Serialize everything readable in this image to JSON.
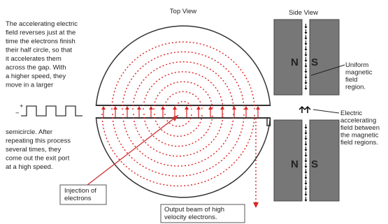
{
  "top_view": "Top View",
  "side_view": "Side View",
  "left_text": {
    "lines": [
      "The accelerating electric",
      "field reverses just at the",
      "time the electrons finish",
      "their half circle, so that",
      "it accelerates them",
      "across the gap. With",
      "a higher speed, they",
      "move in a larger"
    ]
  },
  "wave": {
    "plus": "+",
    "minus": "−"
  },
  "left_text2": {
    "lines": [
      "semicircle. After",
      "repeating this process",
      "several times, they",
      "come out the exit port",
      "at a high speed."
    ]
  },
  "injection": {
    "lines": [
      "Injection of",
      "electrons"
    ]
  },
  "output": {
    "lines": [
      "Output beam of high",
      "velocity electrons."
    ]
  },
  "magnet_top": {
    "n": "N",
    "s": "S"
  },
  "magnet_bottom": {
    "n": "N",
    "s": "S"
  },
  "uniform": {
    "lines": [
      "Uniform",
      "magnetic",
      "field",
      "region."
    ]
  },
  "electric": {
    "lines": [
      "Electric",
      "accelerating",
      "field between",
      "the magnetic",
      "field regions."
    ]
  }
}
